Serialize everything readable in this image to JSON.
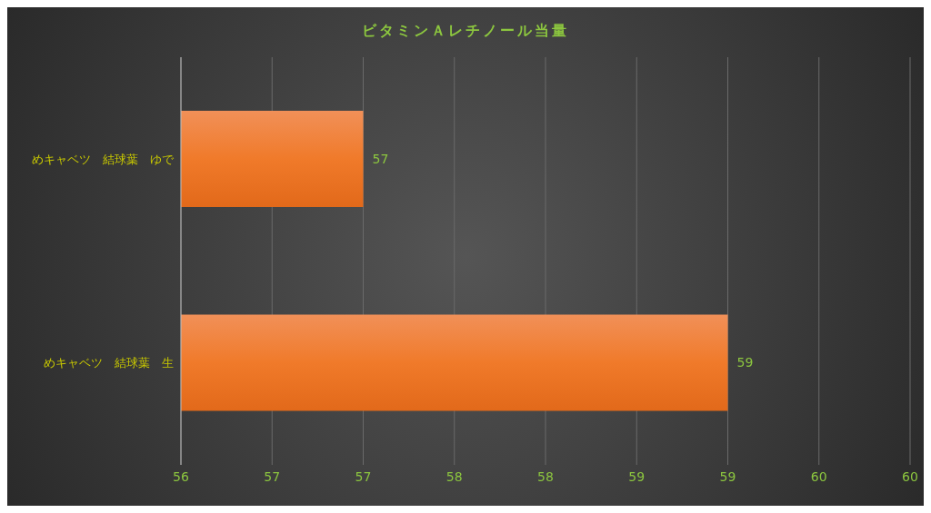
{
  "chart_data": {
    "type": "bar",
    "orientation": "horizontal",
    "title": "ビタミンＡレチノール当量",
    "categories": [
      "めキャベツ　結球葉　ゆで",
      "めキャベツ　結球葉　生"
    ],
    "values": [
      57,
      59
    ],
    "color": "#f07a2a",
    "xlim": [
      56,
      60
    ],
    "xticks": [
      56,
      {
        "value": 56.5,
        "label": "57"
      },
      57,
      {
        "value": 57.5,
        "label": "58"
      },
      58,
      {
        "value": 58.5,
        "label": "59"
      },
      59,
      {
        "value": 59.5,
        "label": "60"
      },
      60
    ],
    "grid": "x",
    "data_labels": true
  }
}
